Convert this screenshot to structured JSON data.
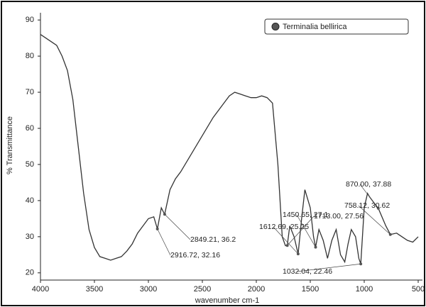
{
  "chart_data": {
    "type": "line",
    "x_label": "wavenumber cm-1",
    "y_label": "% Transmittance",
    "xlim": [
      4000,
      500
    ],
    "ylim": [
      18,
      92
    ],
    "xticks": [
      4000,
      3500,
      3000,
      2500,
      2000,
      1500,
      1000,
      500
    ],
    "yticks": [
      20,
      30,
      40,
      50,
      60,
      70,
      80,
      90
    ],
    "legend": "top-right",
    "x": [
      4000,
      3950,
      3900,
      3850,
      3800,
      3750,
      3700,
      3650,
      3600,
      3550,
      3500,
      3450,
      3400,
      3350,
      3300,
      3250,
      3200,
      3150,
      3100,
      3050,
      3000,
      2950,
      2916.72,
      2880,
      2849.21,
      2800,
      2750,
      2700,
      2600,
      2500,
      2400,
      2300,
      2250,
      2200,
      2150,
      2100,
      2050,
      2000,
      1950,
      1900,
      1850,
      1800,
      1760,
      1730,
      1713,
      1690,
      1650,
      1612.69,
      1580,
      1550,
      1500,
      1470,
      1450.65,
      1420,
      1380,
      1340,
      1300,
      1260,
      1220,
      1180,
      1150,
      1120,
      1080,
      1050,
      1032.04,
      1000,
      970,
      950,
      900,
      870,
      800,
      758.12,
      700,
      650,
      600,
      550,
      500
    ],
    "series": [
      {
        "name": "Terminalia bellirica",
        "color": "#333333",
        "values": [
          86,
          85,
          84,
          83,
          80,
          76,
          68,
          55,
          42,
          32,
          27,
          24.5,
          24,
          23.5,
          24,
          24.5,
          26,
          28,
          31,
          33,
          35,
          35.5,
          32.16,
          38,
          36.2,
          43,
          46,
          48,
          53,
          58,
          63,
          67,
          69,
          70,
          69.5,
          69,
          68.5,
          68.5,
          69,
          68.5,
          67,
          50,
          30,
          27.5,
          27.56,
          33,
          30,
          25.25,
          35,
          43,
          38,
          30,
          27.1,
          32,
          29,
          24,
          29,
          32,
          25,
          23,
          28,
          32,
          30,
          24,
          22.46,
          38,
          42,
          41,
          39,
          37.88,
          33,
          30.62,
          31,
          30,
          29,
          28.5,
          30
        ]
      }
    ],
    "annotations": [
      {
        "label": "2849.21, 36.2",
        "x": 2849.21,
        "y": 36.2
      },
      {
        "label": "2916.72, 32.16",
        "x": 2916.72,
        "y": 32.16
      },
      {
        "label": "1450.65, 27.1",
        "x": 1450.65,
        "y": 27.1
      },
      {
        "label": "1612.69, 25.25",
        "x": 1612.69,
        "y": 25.25
      },
      {
        "label": "870.00, 37.88",
        "x": 870.0,
        "y": 37.88
      },
      {
        "label": "758.12, 30.62",
        "x": 758.12,
        "y": 30.62
      },
      {
        "label": "1713.00, 27.56",
        "x": 1713.0,
        "y": 27.56
      },
      {
        "label": "1032.04, 22.46",
        "x": 1032.04,
        "y": 22.46
      }
    ]
  }
}
